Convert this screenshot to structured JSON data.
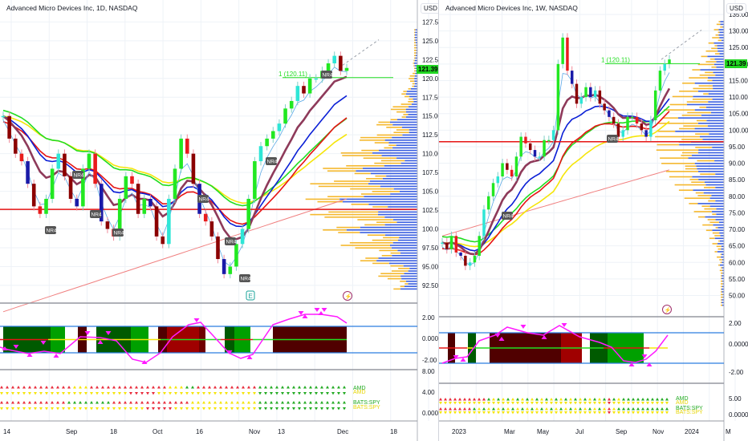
{
  "left_chart": {
    "title": "Advanced Micro Devices Inc, 1D, NASDAQ",
    "currency_button": "USD",
    "last_price": "121.39",
    "fib_label": "1 (120.11)",
    "price_axis": [
      "127.50",
      "125.00",
      "122.50",
      "120.00",
      "117.50",
      "115.00",
      "112.50",
      "110.00",
      "107.50",
      "105.00",
      "102.50",
      "100.00",
      "97.50",
      "95.00",
      "92.50"
    ],
    "osc_axis": [
      "2.00",
      "0.0000",
      "-2.00"
    ],
    "signal_axis": [
      "8.00",
      "4.00",
      "0.0000"
    ],
    "time_axis": [
      "14",
      "Sep",
      "18",
      "Oct",
      "16",
      "Nov",
      "13",
      "Dec",
      "18"
    ],
    "signal_labels": [
      "AMD",
      "AMD",
      "BATS:SPY",
      "BATS:SPY"
    ],
    "markers": {
      "nr4": "NR4",
      "earnings": "E",
      "dividend": "⚡"
    }
  },
  "right_chart": {
    "title": "Advanced Micro Devices Inc, 1W, NASDAQ",
    "currency_button": "USD",
    "last_price": "121.39",
    "fib_label": "1 (120.11)",
    "price_axis": [
      "135.00",
      "130.00",
      "125.00",
      "120.00",
      "115.00",
      "110.00",
      "105.00",
      "100.00",
      "95.00",
      "90.00",
      "85.00",
      "80.00",
      "75.00",
      "70.00",
      "65.00",
      "60.00",
      "55.00",
      "50.00"
    ],
    "osc_axis": [
      "2.00",
      "0.0000",
      "-2.00"
    ],
    "signal_axis": [
      "5.00",
      "0.0000"
    ],
    "time_axis": [
      "2023",
      "Mar",
      "May",
      "Jul",
      "Sep",
      "Nov",
      "2024",
      "M"
    ],
    "signal_labels": [
      "AMD",
      "AMD",
      "BATS:SPY",
      "BATS:SPY"
    ],
    "markers": {
      "nr4": "NR4",
      "dividend": "⚡"
    }
  },
  "colors": {
    "up_candle": "#22e822",
    "up_candle_alt": "#2ee6d6",
    "down_candle": "#8b0000",
    "down_candle_alt": "#e81c1c",
    "blue_candle": "#1a1aa8",
    "ema_green": "#22dd22",
    "ema_yellow": "#f5e50a",
    "ema_blue": "#0a1fd6",
    "ema_red": "#e61414",
    "ema_maroon": "#8e3a5a",
    "ema_light_blue": "#5aa9e6",
    "sma_pink": "#f08080",
    "support_line": "#e61414",
    "volume_profile_up": "#3a5fe0",
    "volume_profile_down": "#f5b82e",
    "oscillator_line": "#ff1aff",
    "band_line": "#2b7de0",
    "price_tag_bg": "#22d622"
  },
  "chart_data": [
    {
      "type": "candlestick",
      "title": "Advanced Micro Devices Inc, 1D, NASDAQ",
      "xlabel": "",
      "ylabel": "USD",
      "ylim": [
        91,
        128.5
      ],
      "x_ticks": [
        "14",
        "Sep",
        "18",
        "Oct",
        "16",
        "Nov",
        "13",
        "Dec",
        "18"
      ],
      "last_price": 121.39,
      "horizontal_lines": [
        {
          "value": 102.6,
          "color": "#e61414"
        },
        {
          "value": 120.11,
          "color": "#22dd22",
          "label": "1 (120.11)"
        }
      ],
      "close_approx": [
        115,
        112,
        110,
        109,
        106,
        103,
        102,
        104,
        108,
        110,
        107,
        104,
        103,
        108,
        110,
        106,
        101,
        100,
        99,
        104,
        107,
        106,
        102,
        104,
        103,
        99,
        98,
        104,
        108,
        112,
        110,
        106,
        102,
        101,
        99,
        96,
        94,
        95,
        98,
        100,
        104,
        109,
        111,
        112,
        113,
        114,
        116,
        117,
        119,
        118,
        120,
        120,
        121,
        122,
        123,
        121,
        121.39
      ],
      "ema_bands": [
        "green",
        "yellow",
        "blue",
        "red",
        "maroon",
        "light-blue"
      ]
    },
    {
      "type": "candlestick",
      "title": "Advanced Micro Devices Inc, 1W, NASDAQ",
      "xlabel": "",
      "ylabel": "USD",
      "ylim": [
        46,
        135
      ],
      "x_ticks": [
        "2023",
        "Mar",
        "May",
        "Jul",
        "Sep",
        "Nov",
        "2024",
        "M"
      ],
      "last_price": 121.39,
      "horizontal_lines": [
        {
          "value": 96.5,
          "color": "#e61414"
        },
        {
          "value": 120.11,
          "color": "#22dd22",
          "label": "1 (120.11)"
        }
      ],
      "close_approx": [
        66,
        64,
        68,
        63,
        62,
        59,
        60,
        62,
        68,
        76,
        80,
        84,
        86,
        90,
        88,
        86,
        92,
        98,
        96,
        94,
        92,
        92,
        97,
        97,
        100,
        120,
        128,
        118,
        114,
        108,
        110,
        113,
        110,
        112,
        108,
        106,
        104,
        102,
        98,
        100,
        104,
        104,
        102,
        100,
        98,
        103,
        112,
        118,
        120,
        121.39
      ]
    }
  ]
}
